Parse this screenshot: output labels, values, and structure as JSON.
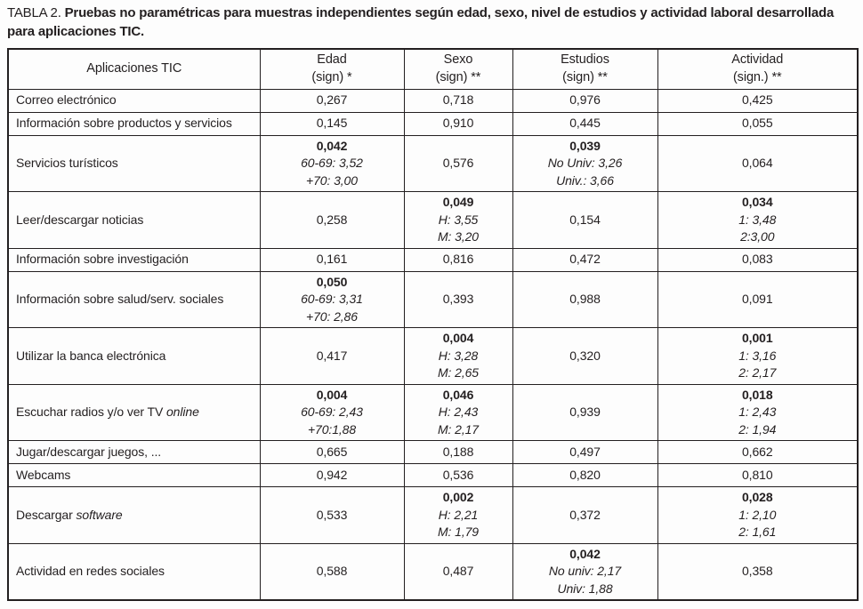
{
  "colors": {
    "text": "#231f20",
    "border": "#231f20",
    "background": "#fdfdfd"
  },
  "caption": {
    "label": "TABLA 2.",
    "text": "Pruebas no paramétricas para muestras independientes según edad, sexo, nivel de estudios y actividad laboral desarrollada para aplicaciones TIC."
  },
  "table": {
    "columns": [
      {
        "label": "Aplicaciones TIC",
        "sub": ""
      },
      {
        "label": "Edad",
        "sub": "(sign) *"
      },
      {
        "label": "Sexo",
        "sub": "(sign) **"
      },
      {
        "label": "Estudios",
        "sub": "(sign) **"
      },
      {
        "label": "Actividad",
        "sub": "(sign.) **"
      }
    ],
    "rows": [
      {
        "app": [
          {
            "text": "Correo electrónico",
            "italic": false
          }
        ],
        "edad": {
          "main": "0,267",
          "sub": []
        },
        "sexo": {
          "main": "0,718",
          "sub": []
        },
        "estudios": {
          "main": "0,976",
          "sub": []
        },
        "actividad": {
          "main": "0,425",
          "sub": []
        }
      },
      {
        "app": [
          {
            "text": "Información sobre productos y servicios",
            "italic": false
          }
        ],
        "edad": {
          "main": "0,145",
          "sub": []
        },
        "sexo": {
          "main": "0,910",
          "sub": []
        },
        "estudios": {
          "main": "0,445",
          "sub": []
        },
        "actividad": {
          "main": "0,055",
          "sub": []
        }
      },
      {
        "app": [
          {
            "text": "Servicios turísticos",
            "italic": false
          }
        ],
        "edad": {
          "main": "0,042",
          "sub": [
            "60-69: 3,52",
            "+70: 3,00"
          ]
        },
        "sexo": {
          "main": "0,576",
          "sub": []
        },
        "estudios": {
          "main": "0,039",
          "sub": [
            "No Univ: 3,26",
            "Univ.: 3,66"
          ]
        },
        "actividad": {
          "main": "0,064",
          "sub": []
        }
      },
      {
        "app": [
          {
            "text": "Leer/descargar noticias",
            "italic": false
          }
        ],
        "edad": {
          "main": "0,258",
          "sub": []
        },
        "sexo": {
          "main": "0,049",
          "sub": [
            "H: 3,55",
            "M: 3,20"
          ]
        },
        "estudios": {
          "main": "0,154",
          "sub": []
        },
        "actividad": {
          "main": "0,034",
          "sub": [
            "1: 3,48",
            "2:3,00"
          ]
        }
      },
      {
        "app": [
          {
            "text": "Información sobre investigación",
            "italic": false
          }
        ],
        "edad": {
          "main": "0,161",
          "sub": []
        },
        "sexo": {
          "main": "0,816",
          "sub": []
        },
        "estudios": {
          "main": "0,472",
          "sub": []
        },
        "actividad": {
          "main": "0,083",
          "sub": []
        }
      },
      {
        "app": [
          {
            "text": "Información sobre salud/serv. sociales",
            "italic": false
          }
        ],
        "edad": {
          "main": "0,050",
          "sub": [
            "60-69: 3,31",
            "+70: 2,86"
          ]
        },
        "sexo": {
          "main": "0,393",
          "sub": []
        },
        "estudios": {
          "main": "0,988",
          "sub": []
        },
        "actividad": {
          "main": "0,091",
          "sub": []
        }
      },
      {
        "app": [
          {
            "text": "Utilizar la banca electrónica",
            "italic": false
          }
        ],
        "edad": {
          "main": "0,417",
          "sub": []
        },
        "sexo": {
          "main": "0,004",
          "sub": [
            "H: 3,28",
            "M: 2,65"
          ]
        },
        "estudios": {
          "main": "0,320",
          "sub": []
        },
        "actividad": {
          "main": "0,001",
          "sub": [
            "1: 3,16",
            "2: 2,17"
          ]
        }
      },
      {
        "app": [
          {
            "text": "Escuchar radios y/o ver TV ",
            "italic": false
          },
          {
            "text": "online",
            "italic": true
          }
        ],
        "edad": {
          "main": "0,004",
          "sub": [
            "60-69: 2,43",
            "+70:1,88"
          ]
        },
        "sexo": {
          "main": "0,046",
          "sub": [
            "H: 2,43",
            "M: 2,17"
          ]
        },
        "estudios": {
          "main": "0,939",
          "sub": []
        },
        "actividad": {
          "main": "0,018",
          "sub": [
            "1: 2,43",
            "2: 1,94"
          ]
        }
      },
      {
        "app": [
          {
            "text": "Jugar/descargar juegos, ...",
            "italic": false
          }
        ],
        "edad": {
          "main": "0,665",
          "sub": []
        },
        "sexo": {
          "main": "0,188",
          "sub": []
        },
        "estudios": {
          "main": "0,497",
          "sub": []
        },
        "actividad": {
          "main": "0,662",
          "sub": []
        }
      },
      {
        "app": [
          {
            "text": "Webcams",
            "italic": false
          }
        ],
        "edad": {
          "main": "0,942",
          "sub": []
        },
        "sexo": {
          "main": "0,536",
          "sub": []
        },
        "estudios": {
          "main": "0,820",
          "sub": []
        },
        "actividad": {
          "main": "0,810",
          "sub": []
        }
      },
      {
        "app": [
          {
            "text": "Descargar ",
            "italic": false
          },
          {
            "text": "software",
            "italic": true
          }
        ],
        "edad": {
          "main": "0,533",
          "sub": []
        },
        "sexo": {
          "main": "0,002",
          "sub": [
            "H: 2,21",
            "M: 1,79"
          ]
        },
        "estudios": {
          "main": "0,372",
          "sub": []
        },
        "actividad": {
          "main": "0,028",
          "sub": [
            "1: 2,10",
            "2: 1,61"
          ]
        }
      },
      {
        "app": [
          {
            "text": "Actividad en redes sociales",
            "italic": false
          }
        ],
        "edad": {
          "main": "0,588",
          "sub": []
        },
        "sexo": {
          "main": "0,487",
          "sub": []
        },
        "estudios": {
          "main": "0,042",
          "sub": [
            "No univ: 2,17",
            "Univ: 1,88"
          ]
        },
        "actividad": {
          "main": "0,358",
          "sub": []
        }
      }
    ]
  }
}
